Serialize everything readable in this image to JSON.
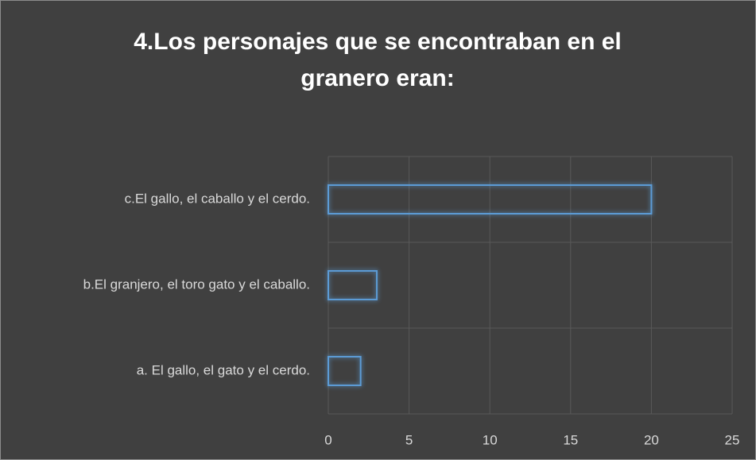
{
  "chart_data": {
    "type": "hbar",
    "title": "4.Los personajes que se encontraban en el granero eran:",
    "categories": [
      "a. El gallo, el gato y el cerdo.",
      "b.El granjero, el toro gato y el caballo.",
      "c.El gallo, el caballo y el cerdo."
    ],
    "values": [
      2,
      3,
      20
    ],
    "color": "#5b9bd5",
    "xlim": [
      0,
      25
    ],
    "xticks": [
      0,
      5,
      10,
      15,
      20,
      25
    ],
    "grid": true
  }
}
